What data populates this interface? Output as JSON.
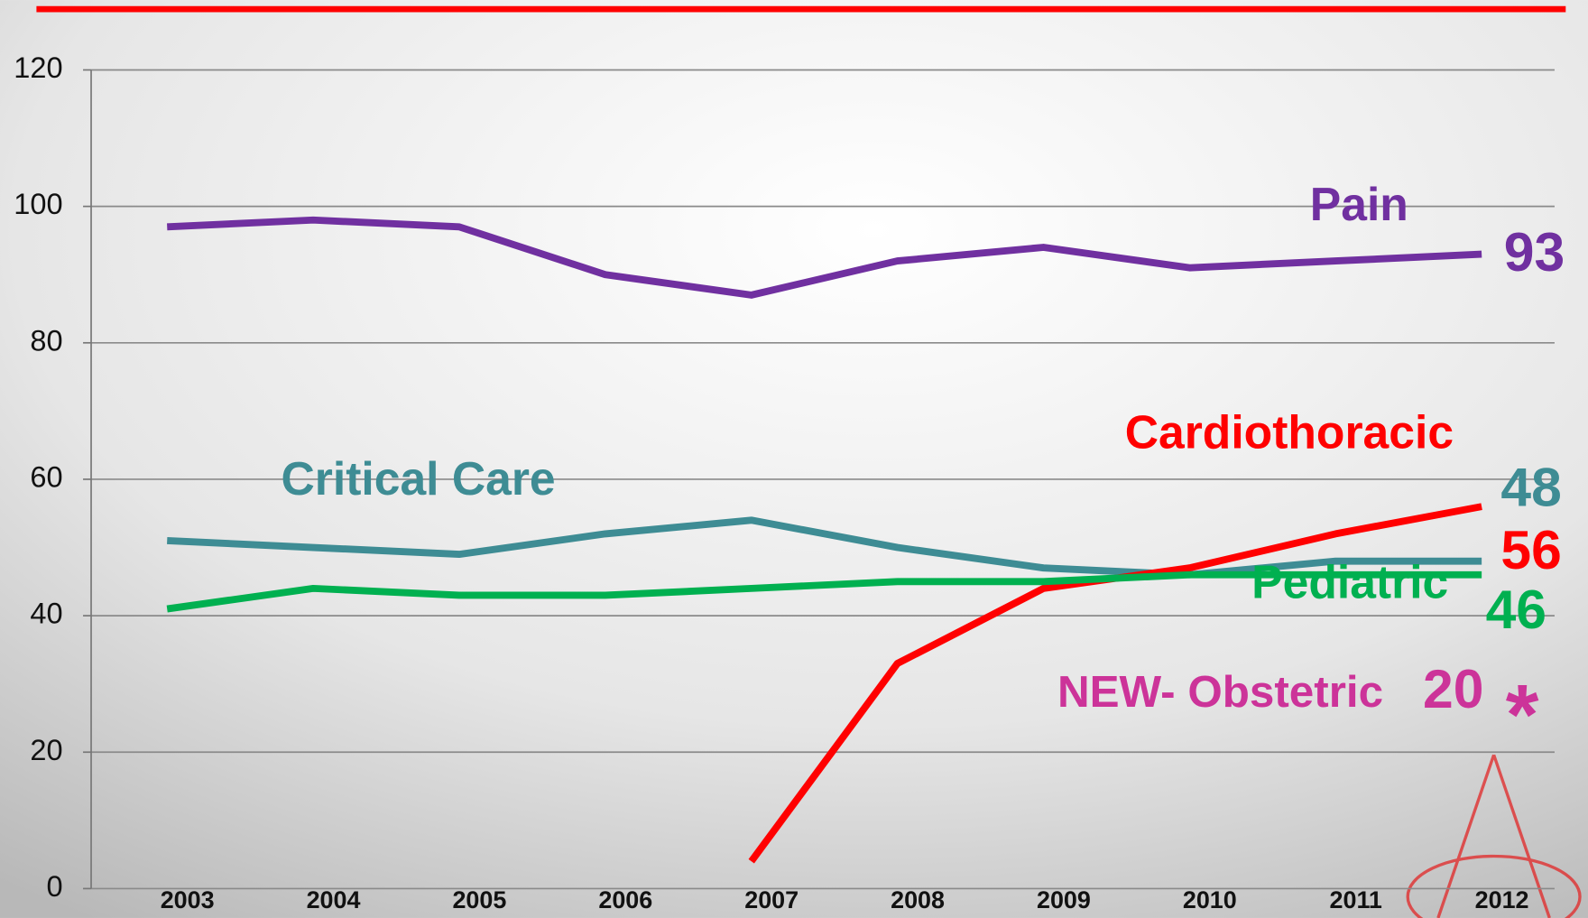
{
  "chart_data": {
    "type": "line",
    "categories": [
      "2003",
      "2004",
      "2005",
      "2006",
      "2007",
      "2008",
      "2009",
      "2010",
      "2011",
      "2012"
    ],
    "series": [
      {
        "name": "Pain",
        "color": "#7030a0",
        "values": [
          97,
          98,
          97,
          90,
          87,
          92,
          94,
          91,
          92,
          93
        ]
      },
      {
        "name": "Critical Care",
        "color": "#3e8c94",
        "values": [
          51,
          50,
          49,
          52,
          54,
          50,
          47,
          46,
          48,
          48
        ]
      },
      {
        "name": "Cardiothoracic",
        "color": "#ff0000",
        "values": [
          null,
          null,
          null,
          null,
          4,
          33,
          44,
          47,
          52,
          56
        ]
      },
      {
        "name": "Pediatric",
        "color": "#00b050",
        "values": [
          41,
          44,
          43,
          43,
          44,
          45,
          45,
          46,
          46,
          46
        ]
      }
    ],
    "annotations": [
      {
        "text": "NEW- Obstetric",
        "value": 20,
        "mark": "*",
        "color": "#cc3399"
      }
    ],
    "ylim": [
      0,
      120
    ],
    "yticks": [
      0,
      20,
      40,
      60,
      80,
      100,
      120
    ],
    "grid": true
  }
}
